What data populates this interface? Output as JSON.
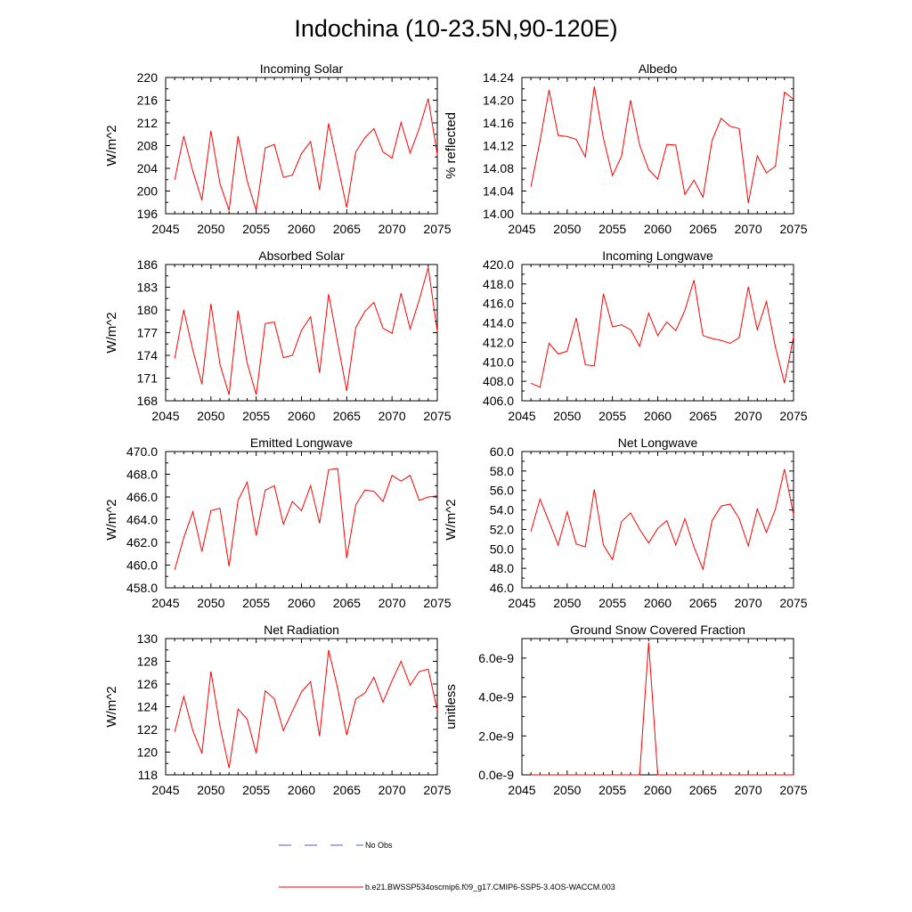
{
  "figure_title": "Indochina (10-23.5N,90-120E)",
  "legend": {
    "obs_label": "No Obs",
    "model_label": "b.e21.BWSSP534oscmip6.f09_g17.CMIP6-SSP5-3.4OS-WACCM.003",
    "colors": {
      "obs": "#4b5fc8",
      "model": "#ff0000"
    }
  },
  "chart_data": [
    {
      "type": "line",
      "title": "Incoming Solar",
      "ylabel": "W/m^2",
      "xlabel": "",
      "xlim": [
        2045,
        2075
      ],
      "ylim": [
        196,
        220
      ],
      "yticks": [
        196,
        200,
        204,
        208,
        212,
        216,
        220
      ],
      "ytick_labels": [
        "196",
        "200",
        "204",
        "208",
        "212",
        "216",
        "220"
      ],
      "xticks": [
        2045,
        2050,
        2055,
        2060,
        2065,
        2070,
        2075
      ],
      "xtick_labels": [
        "2045",
        "2050",
        "2055",
        "2060",
        "2065",
        "2070",
        "2075"
      ],
      "x": [
        2046,
        2047,
        2048,
        2049,
        2050,
        2051,
        2052,
        2053,
        2054,
        2055,
        2056,
        2057,
        2058,
        2059,
        2060,
        2061,
        2062,
        2063,
        2064,
        2065,
        2066,
        2067,
        2068,
        2069,
        2070,
        2071,
        2072,
        2073,
        2074,
        2075
      ],
      "series": [
        {
          "name": "b.e21.BWSSP534oscmip6.f09_g17.CMIP6-SSP5-3.4OS-WACCM.003",
          "values": [
            202.0,
            209.7,
            203.5,
            198.4,
            210.6,
            201.3,
            196.6,
            209.7,
            201.8,
            196.6,
            207.6,
            208.2,
            202.4,
            202.8,
            206.6,
            208.7,
            200.2,
            211.9,
            204.5,
            197.1,
            206.9,
            209.4,
            211.0,
            206.9,
            205.8,
            212.1,
            206.7,
            211.0,
            216.3,
            206.4
          ]
        }
      ]
    },
    {
      "type": "line",
      "title": "Albedo",
      "ylabel": "% reflected",
      "xlabel": "",
      "xlim": [
        2045,
        2075
      ],
      "ylim": [
        14.0,
        14.24
      ],
      "yticks": [
        14.0,
        14.04,
        14.08,
        14.12,
        14.16,
        14.2,
        14.24
      ],
      "ytick_labels": [
        "14.00",
        "14.04",
        "14.08",
        "14.12",
        "14.16",
        "14.20",
        "14.24"
      ],
      "xticks": [
        2045,
        2050,
        2055,
        2060,
        2065,
        2070,
        2075
      ],
      "xtick_labels": [
        "2045",
        "2050",
        "2055",
        "2060",
        "2065",
        "2070",
        "2075"
      ],
      "x": [
        2046,
        2047,
        2048,
        2049,
        2050,
        2051,
        2052,
        2053,
        2054,
        2055,
        2056,
        2057,
        2058,
        2059,
        2060,
        2061,
        2062,
        2063,
        2064,
        2065,
        2066,
        2067,
        2068,
        2069,
        2070,
        2071,
        2072,
        2073,
        2074,
        2075
      ],
      "series": [
        {
          "name": "b.e21.BWSSP534oscmip6.f09_g17.CMIP6-SSP5-3.4OS-WACCM.003",
          "values": [
            14.048,
            14.128,
            14.218,
            14.138,
            14.136,
            14.131,
            14.1,
            14.224,
            14.133,
            14.067,
            14.101,
            14.2,
            14.121,
            14.078,
            14.061,
            14.122,
            14.121,
            14.034,
            14.059,
            14.029,
            14.129,
            14.168,
            14.154,
            14.15,
            14.019,
            14.102,
            14.072,
            14.084,
            14.214,
            14.202
          ]
        }
      ]
    },
    {
      "type": "line",
      "title": "Absorbed Solar",
      "ylabel": "W/m^2",
      "xlabel": "",
      "xlim": [
        2045,
        2075
      ],
      "ylim": [
        168,
        186
      ],
      "yticks": [
        168,
        171,
        174,
        177,
        180,
        183,
        186
      ],
      "ytick_labels": [
        "168",
        "171",
        "174",
        "177",
        "180",
        "183",
        "186"
      ],
      "xticks": [
        2045,
        2050,
        2055,
        2060,
        2065,
        2070,
        2075
      ],
      "xtick_labels": [
        "2045",
        "2050",
        "2055",
        "2060",
        "2065",
        "2070",
        "2075"
      ],
      "x": [
        2046,
        2047,
        2048,
        2049,
        2050,
        2051,
        2052,
        2053,
        2054,
        2055,
        2056,
        2057,
        2058,
        2059,
        2060,
        2061,
        2062,
        2063,
        2064,
        2065,
        2066,
        2067,
        2068,
        2069,
        2070,
        2071,
        2072,
        2073,
        2074,
        2075
      ],
      "series": [
        {
          "name": "b.e21.BWSSP534oscmip6.f09_g17.CMIP6-SSP5-3.4OS-WACCM.003",
          "values": [
            173.6,
            180.0,
            174.7,
            170.2,
            180.8,
            172.8,
            168.8,
            179.9,
            173.0,
            168.8,
            178.2,
            178.4,
            173.7,
            174.0,
            177.3,
            179.1,
            171.7,
            182.1,
            175.6,
            169.3,
            177.7,
            179.8,
            181.0,
            177.6,
            176.9,
            182.2,
            177.5,
            181.3,
            185.6,
            177.2
          ]
        }
      ]
    },
    {
      "type": "line",
      "title": "Incoming Longwave",
      "ylabel": "",
      "xlabel": "",
      "xlim": [
        2045,
        2075
      ],
      "ylim": [
        406.0,
        420.0
      ],
      "yticks": [
        406.0,
        408.0,
        410.0,
        412.0,
        414.0,
        416.0,
        418.0,
        420.0
      ],
      "ytick_labels": [
        "406.0",
        "408.0",
        "410.0",
        "412.0",
        "414.0",
        "416.0",
        "418.0",
        "420.0"
      ],
      "xticks": [
        2045,
        2050,
        2055,
        2060,
        2065,
        2070,
        2075
      ],
      "xtick_labels": [
        "2045",
        "2050",
        "2055",
        "2060",
        "2065",
        "2070",
        "2075"
      ],
      "x": [
        2046,
        2047,
        2048,
        2049,
        2050,
        2051,
        2052,
        2053,
        2054,
        2055,
        2056,
        2057,
        2058,
        2059,
        2060,
        2061,
        2062,
        2063,
        2064,
        2065,
        2066,
        2067,
        2068,
        2069,
        2070,
        2071,
        2072,
        2073,
        2074,
        2075
      ],
      "series": [
        {
          "name": "b.e21.BWSSP534oscmip6.f09_g17.CMIP6-SSP5-3.4OS-WACCM.003",
          "values": [
            407.8,
            407.4,
            411.9,
            410.8,
            411.1,
            414.5,
            409.7,
            409.6,
            417.0,
            413.6,
            413.8,
            413.3,
            411.6,
            415.0,
            412.7,
            414.1,
            413.2,
            415.3,
            418.4,
            412.7,
            412.4,
            412.2,
            411.9,
            412.5,
            417.7,
            413.3,
            416.2,
            411.5,
            407.8,
            412.6
          ]
        }
      ]
    },
    {
      "type": "line",
      "title": "Emitted Longwave",
      "ylabel": "W/m^2",
      "xlabel": "",
      "xlim": [
        2045,
        2075
      ],
      "ylim": [
        458.0,
        470.0
      ],
      "yticks": [
        458.0,
        460.0,
        462.0,
        464.0,
        466.0,
        468.0,
        470.0
      ],
      "ytick_labels": [
        "458.0",
        "460.0",
        "462.0",
        "464.0",
        "466.0",
        "468.0",
        "470.0"
      ],
      "xticks": [
        2045,
        2050,
        2055,
        2060,
        2065,
        2070,
        2075
      ],
      "xtick_labels": [
        "2045",
        "2050",
        "2055",
        "2060",
        "2065",
        "2070",
        "2075"
      ],
      "x": [
        2046,
        2047,
        2048,
        2049,
        2050,
        2051,
        2052,
        2053,
        2054,
        2055,
        2056,
        2057,
        2058,
        2059,
        2060,
        2061,
        2062,
        2063,
        2064,
        2065,
        2066,
        2067,
        2068,
        2069,
        2070,
        2071,
        2072,
        2073,
        2074,
        2075
      ],
      "series": [
        {
          "name": "b.e21.BWSSP534oscmip6.f09_g17.CMIP6-SSP5-3.4OS-WACCM.003",
          "values": [
            459.6,
            462.4,
            464.7,
            461.2,
            464.8,
            465.0,
            459.9,
            465.7,
            467.3,
            462.6,
            466.6,
            467.0,
            463.6,
            465.6,
            464.8,
            467.0,
            463.7,
            468.4,
            468.5,
            460.6,
            465.3,
            466.6,
            466.5,
            465.6,
            467.9,
            467.4,
            467.9,
            465.7,
            466.0,
            466.1
          ]
        }
      ]
    },
    {
      "type": "line",
      "title": "Net Longwave",
      "ylabel": "W/m^2",
      "xlabel": "",
      "xlim": [
        2045,
        2075
      ],
      "ylim": [
        46.0,
        60.0
      ],
      "yticks": [
        46.0,
        48.0,
        50.0,
        52.0,
        54.0,
        56.0,
        58.0,
        60.0
      ],
      "ytick_labels": [
        "46.0",
        "48.0",
        "50.0",
        "52.0",
        "54.0",
        "56.0",
        "58.0",
        "60.0"
      ],
      "xticks": [
        2045,
        2050,
        2055,
        2060,
        2065,
        2070,
        2075
      ],
      "xtick_labels": [
        "2045",
        "2050",
        "2055",
        "2060",
        "2065",
        "2070",
        "2075"
      ],
      "x": [
        2046,
        2047,
        2048,
        2049,
        2050,
        2051,
        2052,
        2053,
        2054,
        2055,
        2056,
        2057,
        2058,
        2059,
        2060,
        2061,
        2062,
        2063,
        2064,
        2065,
        2066,
        2067,
        2068,
        2069,
        2070,
        2071,
        2072,
        2073,
        2074,
        2075
      ],
      "series": [
        {
          "name": "b.e21.BWSSP534oscmip6.f09_g17.CMIP6-SSP5-3.4OS-WACCM.003",
          "values": [
            51.8,
            55.1,
            52.8,
            50.4,
            53.8,
            50.5,
            50.2,
            56.1,
            50.4,
            48.9,
            52.8,
            53.7,
            52.0,
            50.6,
            52.1,
            52.9,
            50.4,
            53.1,
            50.2,
            47.9,
            52.9,
            54.4,
            54.6,
            53.1,
            50.3,
            54.1,
            51.7,
            54.1,
            58.2,
            53.5
          ]
        }
      ]
    },
    {
      "type": "line",
      "title": "Net Radiation",
      "ylabel": "W/m^2",
      "xlabel": "",
      "xlim": [
        2045,
        2075
      ],
      "ylim": [
        118,
        130
      ],
      "yticks": [
        118,
        120,
        122,
        124,
        126,
        128,
        130
      ],
      "ytick_labels": [
        "118",
        "120",
        "122",
        "124",
        "126",
        "128",
        "130"
      ],
      "xticks": [
        2045,
        2050,
        2055,
        2060,
        2065,
        2070,
        2075
      ],
      "xtick_labels": [
        "2045",
        "2050",
        "2055",
        "2060",
        "2065",
        "2070",
        "2075"
      ],
      "x": [
        2046,
        2047,
        2048,
        2049,
        2050,
        2051,
        2052,
        2053,
        2054,
        2055,
        2056,
        2057,
        2058,
        2059,
        2060,
        2061,
        2062,
        2063,
        2064,
        2065,
        2066,
        2067,
        2068,
        2069,
        2070,
        2071,
        2072,
        2073,
        2074,
        2075
      ],
      "series": [
        {
          "name": "b.e21.BWSSP534oscmip6.f09_g17.CMIP6-SSP5-3.4OS-WACCM.003",
          "values": [
            121.8,
            124.9,
            121.9,
            119.9,
            127.1,
            122.3,
            118.6,
            123.8,
            122.9,
            119.9,
            125.4,
            124.7,
            121.9,
            123.6,
            125.3,
            126.2,
            121.4,
            129.0,
            125.6,
            121.5,
            124.7,
            125.2,
            126.6,
            124.4,
            126.3,
            128.0,
            125.9,
            127.1,
            127.3,
            123.7
          ]
        }
      ]
    },
    {
      "type": "line",
      "title": "Ground Snow Covered Fraction",
      "ylabel": "unitless",
      "xlabel": "",
      "xlim": [
        2045,
        2075
      ],
      "ylim": [
        0.0,
        7e-09
      ],
      "yticks": [
        0.0,
        2e-09,
        4e-09,
        6e-09
      ],
      "ytick_labels": [
        "0.0e-9",
        "2.0e-9",
        "4.0e-9",
        "6.0e-9"
      ],
      "xticks": [
        2045,
        2050,
        2055,
        2060,
        2065,
        2070,
        2075
      ],
      "xtick_labels": [
        "2045",
        "2050",
        "2055",
        "2060",
        "2065",
        "2070",
        "2075"
      ],
      "x": [
        2046,
        2047,
        2048,
        2049,
        2050,
        2051,
        2052,
        2053,
        2054,
        2055,
        2056,
        2057,
        2058,
        2059,
        2060,
        2061,
        2062,
        2063,
        2064,
        2065,
        2066,
        2067,
        2068,
        2069,
        2070,
        2071,
        2072,
        2073,
        2074,
        2075
      ],
      "series": [
        {
          "name": "b.e21.BWSSP534oscmip6.f09_g17.CMIP6-SSP5-3.4OS-WACCM.003",
          "values": [
            0,
            0,
            0,
            0,
            0,
            0,
            0,
            0,
            0,
            0,
            0,
            0,
            0,
            6.8e-09,
            0,
            0,
            0,
            0,
            0,
            0,
            0,
            0,
            0,
            0,
            0,
            0,
            0,
            0,
            0,
            0
          ]
        }
      ]
    }
  ]
}
